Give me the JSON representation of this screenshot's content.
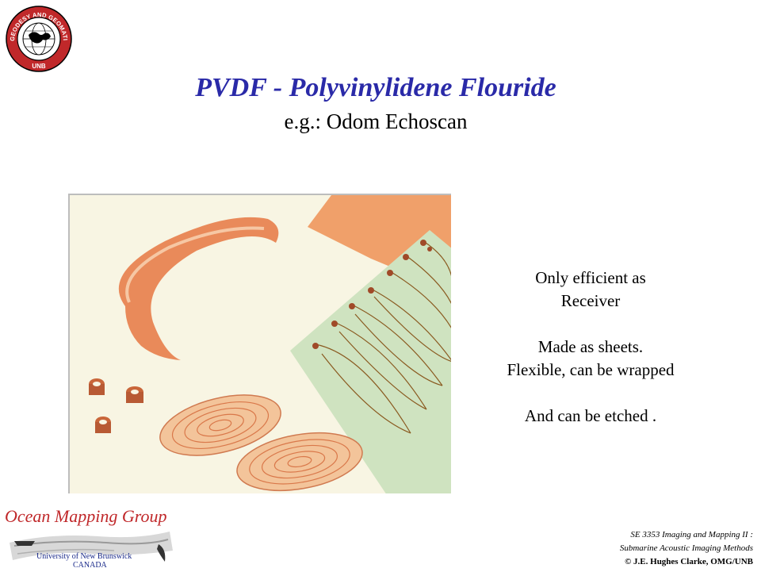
{
  "seal": {
    "text": "GEODESY AND GEOMATICS ENGINEERING",
    "bottom_text": "UNB",
    "ring_color": "#c0282a"
  },
  "slide": {
    "title": "PVDF - Polyvinylidene Flouride",
    "subtitle": "e.g.:  Odom Echoscan",
    "title_color": "#2a2aa8"
  },
  "side_text": {
    "lines": [
      "Only efficient as",
      "Receiver",
      "",
      "Made as sheets.",
      "Flexible, can be wrapped",
      "",
      "And can be etched ."
    ]
  },
  "logo": {
    "group_name": "Ocean Mapping Group",
    "university": "University of New Brunswick",
    "country": "CANADA",
    "group_color": "#c0282a"
  },
  "footer": {
    "course": "SE 3353 Imaging and Mapping II :",
    "topic": "Submarine Acoustic Imaging Methods",
    "credit": "© J.E. Hughes Clarke, OMG/UNB"
  }
}
